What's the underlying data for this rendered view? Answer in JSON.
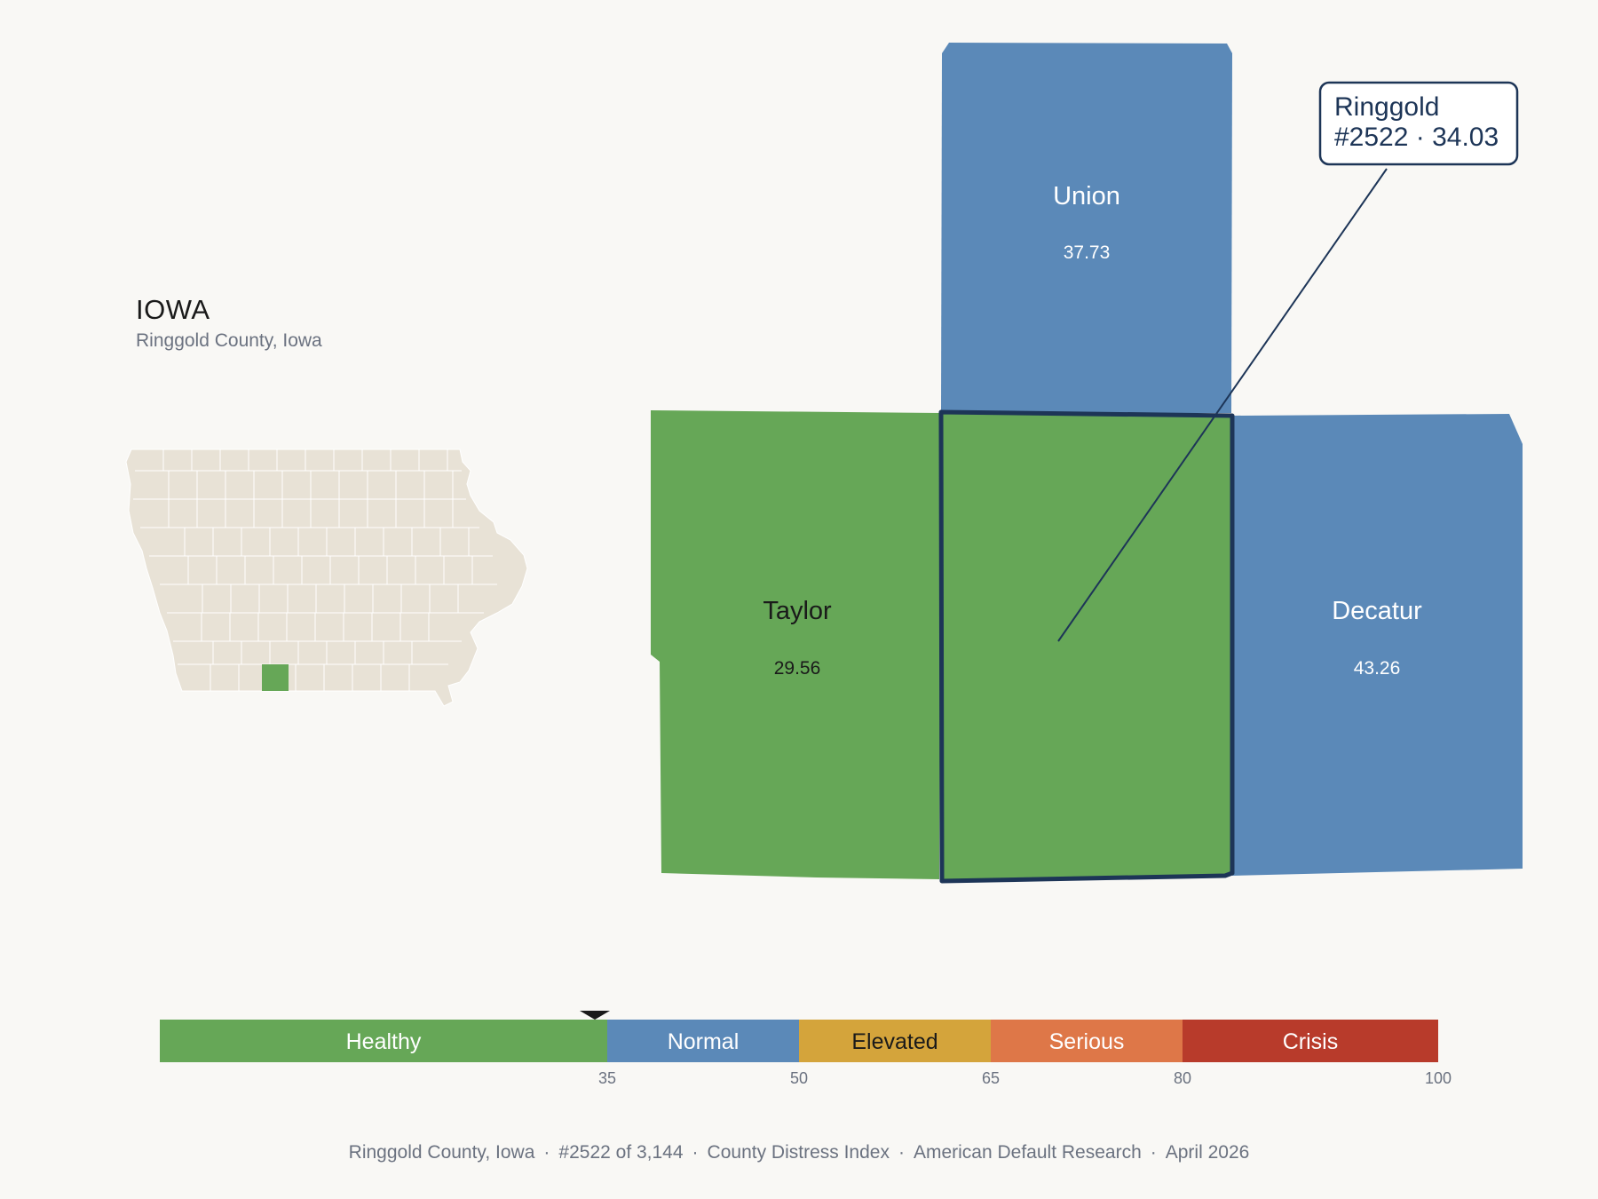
{
  "state": {
    "title": "IOWA",
    "subtitle": "Ringgold County, Iowa"
  },
  "counties": {
    "union": {
      "name": "Union",
      "value": "37.73",
      "category": "Normal"
    },
    "taylor": {
      "name": "Taylor",
      "value": "29.56",
      "category": "Healthy"
    },
    "decatur": {
      "name": "Decatur",
      "value": "43.26",
      "category": "Normal"
    },
    "ringgold": {
      "name": "Ringgold",
      "category": "Healthy"
    }
  },
  "callout": {
    "line1": "Ringgold",
    "line2": "#2522 · 34.03"
  },
  "scale": {
    "marker_value": 34.03,
    "bands": [
      {
        "label": "Healthy",
        "from": 0,
        "to": 35,
        "color": "#66a757"
      },
      {
        "label": "Normal",
        "from": 35,
        "to": 50,
        "color": "#5b89b8"
      },
      {
        "label": "Elevated",
        "from": 50,
        "to": 65,
        "color": "#d4a43b"
      },
      {
        "label": "Serious",
        "from": 65,
        "to": 80,
        "color": "#de7748"
      },
      {
        "label": "Crisis",
        "from": 80,
        "to": 100,
        "color": "#b83b2b"
      }
    ],
    "ticks": [
      "35",
      "50",
      "65",
      "80",
      "100"
    ]
  },
  "colors": {
    "healthy": "#66a757",
    "normal": "#5b89b8",
    "highlight_outline": "#1d3557",
    "state_fill": "#e8e2d6",
    "background": "#f9f8f5"
  },
  "footer": {
    "county": "Ringgold County, Iowa",
    "rank": "#2522 of 3,144",
    "index": "County Distress Index",
    "org": "American Default Research",
    "date": "April 2026"
  }
}
